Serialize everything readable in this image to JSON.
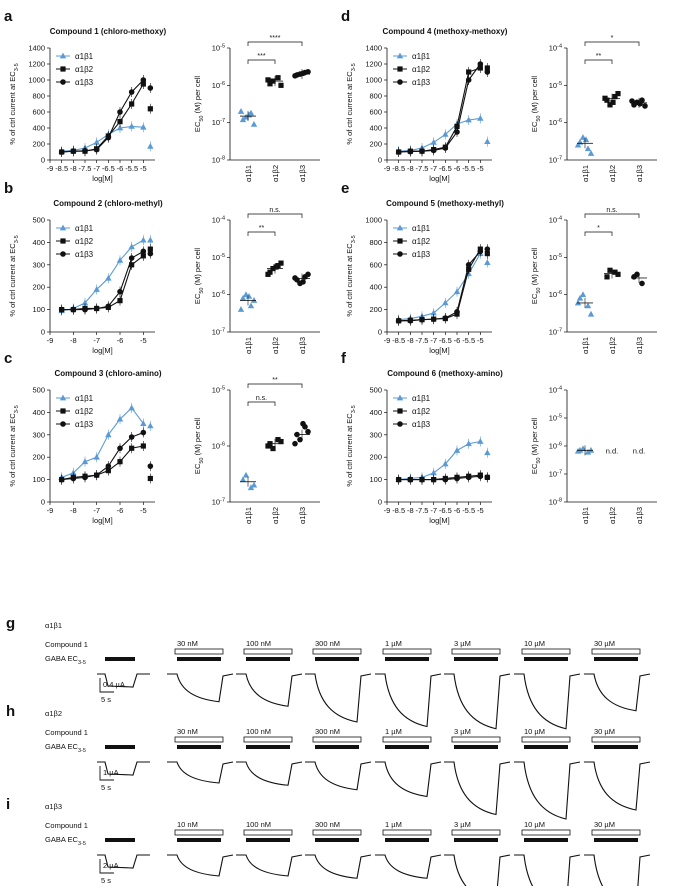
{
  "colors": {
    "a1b1": "#5b9bd5",
    "a1b2": "#111111",
    "a1b3": "#111111"
  },
  "series_names": [
    "α1β1",
    "α1β2",
    "α1β3"
  ],
  "common": {
    "xlabel": "log[M]",
    "ylabel_dose": "% of ctrl current at EC",
    "ylabel_dose_sub": "3-5",
    "ylabel_ec_pre": "EC",
    "ylabel_ec_sub": "50",
    "ylabel_ec_post": " (M) per cell"
  },
  "panels": [
    {
      "letter": "a",
      "title": "Compound 1 (chloro-methoxy)"
    },
    {
      "letter": "b",
      "title": "Compound 2 (chloro-methyl)"
    },
    {
      "letter": "c",
      "title": "Compound 3 (chloro-amino)"
    },
    {
      "letter": "d",
      "title": "Compound 4 (methoxy-methoxy)"
    },
    {
      "letter": "e",
      "title": "Compound 5 (methoxy-methyl)"
    },
    {
      "letter": "f",
      "title": "Compound 6 (methoxy-amino)"
    }
  ],
  "chart_data": [
    {
      "panel": "a",
      "type": "line",
      "title": "Compound 1 (chloro-methoxy)",
      "xlabel": "log[M]",
      "ylabel": "% of ctrl current at EC3-5",
      "xlim": [
        -9,
        -4.5
      ],
      "ylim": [
        0,
        1400
      ],
      "xticks": [
        "-9",
        "-8.5",
        "-8",
        "-7.5",
        "-7",
        "-6.5",
        "-6",
        "-5.5",
        "-5"
      ],
      "yticks": [
        "0",
        "200",
        "400",
        "600",
        "800",
        "1000",
        "1200",
        "1400"
      ],
      "series": [
        {
          "name": "α1β1",
          "x": [
            -8.5,
            -8,
            -7.5,
            -7,
            -6.5,
            -6,
            -5.5,
            -5,
            -4.7
          ],
          "y": [
            110,
            120,
            150,
            220,
            320,
            400,
            420,
            410,
            170
          ]
        },
        {
          "name": "α1β2",
          "x": [
            -8.5,
            -8,
            -7.5,
            -7,
            -6.5,
            -6,
            -5.5,
            -5,
            -4.7
          ],
          "y": [
            100,
            110,
            110,
            140,
            300,
            480,
            700,
            950,
            640
          ]
        },
        {
          "name": "α1β3",
          "x": [
            -8.5,
            -8,
            -7.5,
            -7,
            -6.5,
            -6,
            -5.5,
            -5,
            -4.7
          ],
          "y": [
            100,
            110,
            115,
            130,
            280,
            600,
            850,
            1000,
            900
          ]
        }
      ]
    },
    {
      "panel": "a",
      "type": "scatter",
      "ylabel": "EC50 (M) per cell",
      "yscale": "log",
      "yticks": [
        "10-8",
        "10-7",
        "10-6",
        "10-5"
      ],
      "ylim": [
        1e-08,
        1e-05
      ],
      "categories": [
        "α1β1",
        "α1β2",
        "α1β3"
      ],
      "values": [
        [
          1.2e-07,
          1.8e-07,
          1.4e-07,
          9e-08,
          2e-07,
          1.6e-07
        ],
        [
          1.1e-06,
          1.6e-06,
          1.3e-06,
          1e-06,
          1.4e-06
        ],
        [
          1.9e-06,
          2.2e-06,
          2e-06,
          2.3e-06,
          1.8e-06,
          2.1e-06
        ]
      ],
      "means": [
        1.5e-07,
        1.3e-06,
        2e-06
      ],
      "significance": [
        {
          "from": 0,
          "to": 2,
          "label": "****"
        },
        {
          "from": 0,
          "to": 1,
          "label": "***"
        }
      ]
    },
    {
      "panel": "b",
      "type": "line",
      "title": "Compound 2 (chloro-methyl)",
      "xlabel": "log[M]",
      "ylabel": "% of ctrl current at EC3-5",
      "xlim": [
        -9,
        -4.5
      ],
      "ylim": [
        0,
        500
      ],
      "xticks": [
        "-9",
        "-8",
        "-7",
        "-6",
        "-5"
      ],
      "yticks": [
        "0",
        "100",
        "200",
        "300",
        "400",
        "500"
      ],
      "series": [
        {
          "name": "α1β1",
          "x": [
            -8.5,
            -8,
            -7.5,
            -7,
            -6.5,
            -6,
            -5.5,
            -5,
            -4.7
          ],
          "y": [
            95,
            105,
            130,
            190,
            240,
            320,
            380,
            410,
            410
          ]
        },
        {
          "name": "α1β2",
          "x": [
            -8.5,
            -8,
            -7.5,
            -7,
            -6.5,
            -6,
            -5.5,
            -5,
            -4.7
          ],
          "y": [
            100,
            100,
            105,
            105,
            110,
            140,
            300,
            340,
            370
          ]
        },
        {
          "name": "α1β3",
          "x": [
            -8.5,
            -8,
            -7.5,
            -7,
            -6.5,
            -6,
            -5.5,
            -5,
            -4.7
          ],
          "y": [
            100,
            100,
            100,
            105,
            115,
            180,
            330,
            360,
            350
          ]
        }
      ]
    },
    {
      "panel": "b",
      "type": "scatter",
      "ylabel": "EC50 (M) per cell",
      "yscale": "log",
      "yticks": [
        "10-7",
        "10-6",
        "10-5",
        "10-4"
      ],
      "ylim": [
        1e-07,
        0.0001
      ],
      "categories": [
        "α1β1",
        "α1β2",
        "α1β3"
      ],
      "values": [
        [
          8e-07,
          5e-07,
          1e-06,
          7e-07,
          4e-07,
          9e-07
        ],
        [
          4e-06,
          6e-06,
          5e-06,
          7e-06,
          3.5e-06,
          5.5e-06
        ],
        [
          2.5e-06,
          3e-06,
          2e-06,
          3.5e-06,
          2.8e-06,
          2.2e-06
        ]
      ],
      "means": [
        7e-07,
        5e-06,
        2.7e-06
      ],
      "significance": [
        {
          "from": 0,
          "to": 2,
          "label": "n.s."
        },
        {
          "from": 0,
          "to": 1,
          "label": "**"
        }
      ]
    },
    {
      "panel": "c",
      "type": "line",
      "title": "Compound 3 (chloro-amino)",
      "xlabel": "log[M]",
      "ylabel": "% of ctrl current at EC3-5",
      "xlim": [
        -9,
        -4.5
      ],
      "ylim": [
        0,
        500
      ],
      "xticks": [
        "-9",
        "-8",
        "-7",
        "-6",
        "-5"
      ],
      "yticks": [
        "0",
        "100",
        "200",
        "300",
        "400",
        "500"
      ],
      "series": [
        {
          "name": "α1β1",
          "x": [
            -8.5,
            -8,
            -7.5,
            -7,
            -6.5,
            -6,
            -5.5,
            -5,
            -4.7
          ],
          "y": [
            110,
            130,
            180,
            200,
            300,
            370,
            420,
            350,
            340
          ]
        },
        {
          "name": "α1β2",
          "x": [
            -8.5,
            -8,
            -7.5,
            -7,
            -6.5,
            -6,
            -5.5,
            -5,
            -4.7
          ],
          "y": [
            100,
            110,
            115,
            120,
            140,
            180,
            240,
            250,
            105
          ]
        },
        {
          "name": "α1β3",
          "x": [
            -8.5,
            -8,
            -7.5,
            -7,
            -6.5,
            -6,
            -5.5,
            -5,
            -4.7
          ],
          "y": [
            100,
            105,
            110,
            120,
            160,
            240,
            290,
            310,
            160
          ]
        }
      ]
    },
    {
      "panel": "c",
      "type": "scatter",
      "ylabel": "EC50 (M) per cell",
      "yscale": "log",
      "yticks": [
        "10-7",
        "10-6",
        "10-5"
      ],
      "ylim": [
        1e-07,
        1e-05
      ],
      "categories": [
        "α1β1",
        "α1β2",
        "α1β3"
      ],
      "values": [
        [
          2.5e-07,
          1.8e-07,
          3e-07,
          2e-07
        ],
        [
          1.1e-06,
          1.3e-06,
          9e-07,
          1.2e-06,
          1e-06
        ],
        [
          1.6e-06,
          2.2e-06,
          1.3e-06,
          1.8e-06,
          1.1e-06,
          2.5e-06
        ]
      ],
      "means": [
        2.3e-07,
        1.1e-06,
        1.6e-06
      ],
      "significance": [
        {
          "from": 0,
          "to": 2,
          "label": "**"
        },
        {
          "from": 0,
          "to": 1,
          "label": "n.s."
        }
      ]
    },
    {
      "panel": "d",
      "type": "line",
      "title": "Compound 4 (methoxy-methoxy)",
      "xlabel": "log[M]",
      "ylabel": "% of ctrl current at EC3-5",
      "xlim": [
        -9,
        -4.5
      ],
      "ylim": [
        0,
        1400
      ],
      "xticks": [
        "-9",
        "-8.5",
        "-8",
        "-7.5",
        "-7",
        "-6.5",
        "-6",
        "-5.5",
        "-5"
      ],
      "yticks": [
        "0",
        "200",
        "400",
        "600",
        "800",
        "1000",
        "1200",
        "1400"
      ],
      "series": [
        {
          "name": "α1β1",
          "x": [
            -8.5,
            -8,
            -7.5,
            -7,
            -6.5,
            -6,
            -5.5,
            -5,
            -4.7
          ],
          "y": [
            110,
            120,
            150,
            220,
            320,
            450,
            500,
            520,
            230
          ]
        },
        {
          "name": "α1β2",
          "x": [
            -8.5,
            -8,
            -7.5,
            -7,
            -6.5,
            -6,
            -5.5,
            -5,
            -4.7
          ],
          "y": [
            100,
            110,
            110,
            130,
            160,
            420,
            1100,
            1150,
            1150
          ]
        },
        {
          "name": "α1β3",
          "x": [
            -8.5,
            -8,
            -7.5,
            -7,
            -6.5,
            -6,
            -5.5,
            -5,
            -4.7
          ],
          "y": [
            100,
            105,
            110,
            120,
            150,
            350,
            1000,
            1200,
            1100
          ]
        }
      ]
    },
    {
      "panel": "d",
      "type": "scatter",
      "ylabel": "EC50 (M) per cell",
      "yscale": "log",
      "yticks": [
        "10-7",
        "10-6",
        "10-5",
        "10-4"
      ],
      "ylim": [
        1e-07,
        0.0001
      ],
      "categories": [
        "α1β1",
        "α1β2",
        "α1β3"
      ],
      "values": [
        [
          3e-07,
          2e-07,
          4e-07,
          1.5e-07,
          2.5e-07,
          3.5e-07
        ],
        [
          4e-06,
          5e-06,
          3e-06,
          6e-06,
          4.5e-06,
          3.5e-06
        ],
        [
          3e-06,
          4e-06,
          3.5e-06,
          2.8e-06,
          3.8e-06,
          3.2e-06
        ]
      ],
      "means": [
        2.8e-07,
        4.4e-06,
        3.4e-06
      ],
      "significance": [
        {
          "from": 0,
          "to": 2,
          "label": "*"
        },
        {
          "from": 0,
          "to": 1,
          "label": "**"
        }
      ]
    },
    {
      "panel": "e",
      "type": "line",
      "title": "Compound 5 (methoxy-methyl)",
      "xlabel": "log[M]",
      "ylabel": "% of ctrl current at EC3-5",
      "xlim": [
        -9,
        -4.5
      ],
      "ylim": [
        0,
        1000
      ],
      "xticks": [
        "-9",
        "-8.5",
        "-8",
        "-7.5",
        "-7",
        "-6.5",
        "-6",
        "-5.5",
        "-5"
      ],
      "yticks": [
        "0",
        "200",
        "400",
        "600",
        "800",
        "1000"
      ],
      "series": [
        {
          "name": "α1β1",
          "x": [
            -8.5,
            -8,
            -7.5,
            -7,
            -6.5,
            -6,
            -5.5,
            -5,
            -4.7
          ],
          "y": [
            110,
            120,
            140,
            170,
            260,
            360,
            520,
            700,
            620
          ]
        },
        {
          "name": "α1β2",
          "x": [
            -8.5,
            -8,
            -7.5,
            -7,
            -6.5,
            -6,
            -5.5,
            -5,
            -4.7
          ],
          "y": [
            100,
            105,
            110,
            115,
            120,
            160,
            560,
            740,
            700
          ]
        },
        {
          "name": "α1β3",
          "x": [
            -8.5,
            -8,
            -7.5,
            -7,
            -6.5,
            -6,
            -5.5,
            -5,
            -4.7
          ],
          "y": [
            100,
            100,
            110,
            115,
            125,
            180,
            600,
            720,
            740
          ]
        }
      ]
    },
    {
      "panel": "e",
      "type": "scatter",
      "ylabel": "EC50 (M) per cell",
      "yscale": "log",
      "yticks": [
        "10-7",
        "10-6",
        "10-5",
        "10-4"
      ],
      "ylim": [
        1e-07,
        0.0001
      ],
      "categories": [
        "α1β1",
        "α1β2",
        "α1β3"
      ],
      "values": [
        [
          8e-07,
          5e-07,
          1e-06,
          3e-07,
          6e-07
        ],
        [
          3e-06,
          4e-06,
          4.5e-06,
          3.5e-06
        ],
        [
          3e-06,
          2e-06,
          3.5e-06
        ]
      ],
      "means": [
        6e-07,
        3.7e-06,
        2.8e-06
      ],
      "significance": [
        {
          "from": 0,
          "to": 2,
          "label": "n.s."
        },
        {
          "from": 0,
          "to": 1,
          "label": "*"
        }
      ]
    },
    {
      "panel": "f",
      "type": "line",
      "title": "Compound 6 (methoxy-amino)",
      "xlabel": "log[M]",
      "ylabel": "% of ctrl current at EC3-5",
      "xlim": [
        -9,
        -4.5
      ],
      "ylim": [
        0,
        500
      ],
      "xticks": [
        "-9",
        "-8.5",
        "-8",
        "-7.5",
        "-7",
        "-6.5",
        "-6",
        "-5.5",
        "-5"
      ],
      "yticks": [
        "0",
        "100",
        "200",
        "300",
        "400",
        "500"
      ],
      "series": [
        {
          "name": "α1β1",
          "x": [
            -8.5,
            -8,
            -7.5,
            -7,
            -6.5,
            -6,
            -5.5,
            -5,
            -4.7
          ],
          "y": [
            100,
            105,
            110,
            130,
            170,
            230,
            260,
            270,
            220
          ]
        },
        {
          "name": "α1β2",
          "x": [
            -8.5,
            -8,
            -7.5,
            -7,
            -6.5,
            -6,
            -5.5,
            -5,
            -4.7
          ],
          "y": [
            100,
            100,
            100,
            100,
            105,
            110,
            115,
            120,
            110
          ]
        },
        {
          "name": "α1β3",
          "x": [
            -8.5,
            -8,
            -7.5,
            -7,
            -6.5,
            -6,
            -5.5,
            -5,
            -4.7
          ],
          "y": [
            100,
            100,
            100,
            100,
            100,
            105,
            110,
            115,
            110
          ]
        }
      ]
    },
    {
      "panel": "f",
      "type": "scatter",
      "ylabel": "EC50 (M) per cell",
      "yscale": "log",
      "yticks": [
        "10-8",
        "10-7",
        "10-6",
        "10-5",
        "10-4"
      ],
      "ylim": [
        1e-08,
        0.0001
      ],
      "categories": [
        "α1β1",
        "α1β2",
        "α1β3"
      ],
      "values": [
        [
          7e-07,
          6e-07,
          8e-07,
          7e-07,
          6.5e-07
        ],
        [],
        []
      ],
      "means": [
        7e-07
      ],
      "na_labels": [
        "",
        "n.d.",
        "n.d."
      ],
      "significance": []
    }
  ],
  "traces": {
    "compound_label": "Compound 1",
    "gaba_label": "GABA EC",
    "gaba_sub": "3-5",
    "rows": [
      {
        "letter": "g",
        "subtype": "α1β1",
        "concs": [
          "30 nM",
          "100 nM",
          "300 nM",
          "1 µM",
          "3 µM",
          "10 µM",
          "30 µM"
        ],
        "amplitude": [
          0.35,
          0.45,
          0.8,
          0.9,
          0.95,
          0.95,
          0.55
        ],
        "scale_amp": "0.4 µA",
        "scale_time": "5 s"
      },
      {
        "letter": "h",
        "subtype": "α1β2",
        "concs": [
          "30 nM",
          "100 nM",
          "300 nM",
          "1 µM",
          "3 µM",
          "10 µM",
          "30 µM"
        ],
        "amplitude": [
          0.2,
          0.25,
          0.35,
          0.5,
          0.9,
          1.0,
          0.8
        ],
        "scale_amp": "1 µA",
        "scale_time": "5 s"
      },
      {
        "letter": "i",
        "subtype": "α1β3",
        "concs": [
          "10 nM",
          "100 nM",
          "300 nM",
          "1 µM",
          "3 µM",
          "10 µM",
          "30 µM"
        ],
        "amplitude": [
          0.2,
          0.2,
          0.25,
          0.25,
          0.8,
          1.0,
          1.0
        ],
        "scale_amp": "2 µA",
        "scale_time": "5 s"
      }
    ]
  }
}
